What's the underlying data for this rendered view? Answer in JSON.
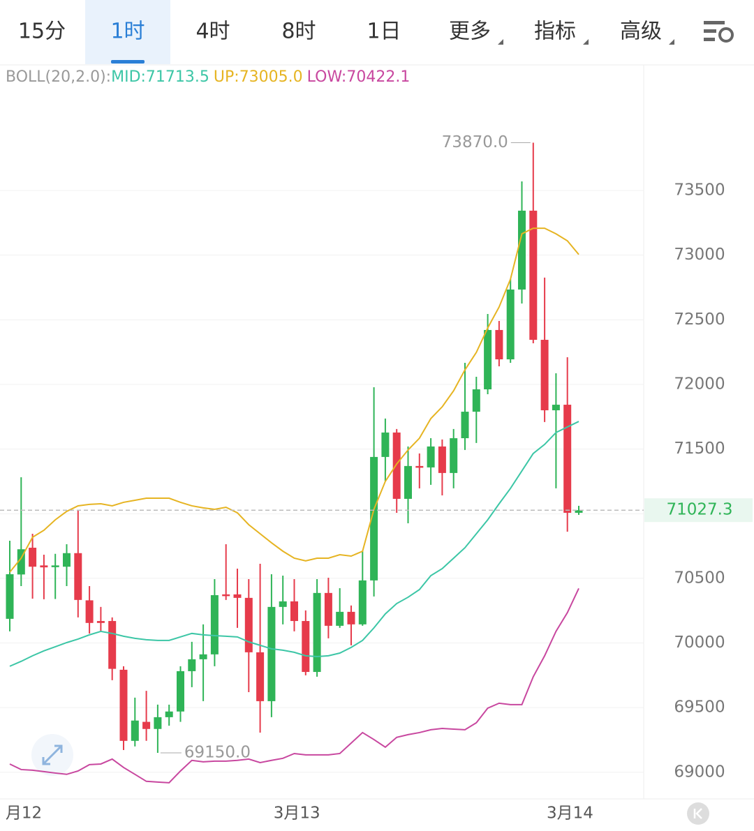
{
  "tabs": [
    "15分",
    "1时",
    "4时",
    "8时",
    "1日",
    "更多",
    "指标",
    "高级"
  ],
  "active_tab": 1,
  "indicator": {
    "label": "BOLL(20,2.0):",
    "mid": "MID:71713.5",
    "up": "UP:73005.0",
    "low": "LOW:70422.1"
  },
  "chart_data": {
    "type": "candlestick",
    "open": [
      70187,
      70530,
      70737,
      70600,
      70590,
      70590,
      70695,
      70330,
      70170,
      70170,
      69793,
      69243,
      69390,
      69335,
      69426,
      69470,
      69782,
      69874,
      69912,
      70376,
      70376,
      70349,
      69928,
      69550,
      70279,
      70322,
      70170,
      69776,
      70387,
      70133,
      70241,
      70144,
      70484,
      71439,
      71628,
      71115,
      71369,
      71358,
      71520,
      71315,
      71584,
      71789,
      71962,
      72421,
      72194,
      72734,
      73344,
      72345,
      71800,
      71843,
      71007
    ],
    "high": [
      70791,
      71282,
      70845,
      70683,
      70690,
      70764,
      71026,
      70440,
      70279,
      70198,
      69820,
      69577,
      69630,
      69523,
      69523,
      69820,
      70009,
      70144,
      70494,
      70764,
      70575,
      70494,
      70613,
      70532,
      70521,
      70494,
      70252,
      70494,
      70505,
      70424,
      70290,
      70710,
      71978,
      71736,
      71655,
      71520,
      71466,
      71584,
      71574,
      71655,
      72167,
      72059,
      72545,
      72491,
      72815,
      73570,
      73870,
      72826,
      72086,
      72210,
      71061
    ],
    "low": [
      70090,
      70440,
      70343,
      70338,
      70340,
      70440,
      70198,
      70073,
      70090,
      69712,
      69172,
      69200,
      69243,
      69150,
      69360,
      69390,
      69658,
      69550,
      69820,
      70333,
      70117,
      69620,
      69307,
      69426,
      70144,
      70090,
      69750,
      69739,
      70036,
      70117,
      69982,
      70133,
      70360,
      71250,
      71007,
      70926,
      71196,
      71223,
      71142,
      71196,
      71493,
      71547,
      71924,
      72140,
      72167,
      72626,
      72318,
      71709,
      71196,
      70861,
      70991
    ],
    "close": [
      70532,
      70725,
      70590,
      70585,
      70600,
      70695,
      70333,
      70155,
      70155,
      69800,
      69243,
      69400,
      69335,
      69426,
      69470,
      69782,
      69874,
      69912,
      70370,
      70370,
      70349,
      69928,
      69550,
      70279,
      70322,
      70170,
      69776,
      70387,
      70133,
      70241,
      70144,
      70484,
      71439,
      71628,
      71115,
      71369,
      71358,
      71520,
      71315,
      71584,
      71789,
      71962,
      72421,
      72194,
      72734,
      73344,
      72345,
      71800,
      71843,
      71007,
      71027.3
    ],
    "bands": [
      {
        "name": "UP",
        "color": "#e6b422",
        "values": [
          70548,
          70656,
          70818,
          70872,
          70953,
          71018,
          71061,
          71072,
          71077,
          71061,
          71088,
          71104,
          71120,
          71120,
          71120,
          71088,
          71061,
          71045,
          71034,
          71050,
          71007,
          70915,
          70845,
          70775,
          70710,
          70656,
          70635,
          70656,
          70656,
          70683,
          70672,
          70710,
          71034,
          71250,
          71385,
          71493,
          71584,
          71736,
          71827,
          71951,
          72113,
          72248,
          72437,
          72599,
          72815,
          73165,
          73208,
          73208,
          73165,
          73111,
          73005
        ]
      },
      {
        "name": "MID",
        "color": "#3cc6a6",
        "values": [
          69820,
          69858,
          69901,
          69939,
          69971,
          70003,
          70030,
          70063,
          70090,
          70074,
          70052,
          70036,
          70025,
          70020,
          70020,
          70047,
          70074,
          70063,
          70057,
          70052,
          70047,
          70009,
          69982,
          69955,
          69944,
          69928,
          69901,
          69895,
          69901,
          69922,
          69966,
          70020,
          70117,
          70225,
          70305,
          70354,
          70413,
          70521,
          70575,
          70656,
          70737,
          70845,
          70953,
          71077,
          71196,
          71331,
          71466,
          71536,
          71628,
          71671,
          71713.5
        ]
      },
      {
        "name": "LOW",
        "color": "#c8479f",
        "values": [
          69064,
          69021,
          69016,
          69005,
          68994,
          68984,
          69010,
          69059,
          69064,
          69102,
          69037,
          68984,
          68930,
          68924,
          68919,
          69010,
          69092,
          69081,
          69086,
          69086,
          69092,
          69102,
          69075,
          69092,
          69108,
          69145,
          69135,
          69135,
          69135,
          69145,
          69226,
          69307,
          69253,
          69194,
          69270,
          69291,
          69307,
          69329,
          69339,
          69334,
          69329,
          69383,
          69496,
          69534,
          69523,
          69523,
          69739,
          69901,
          70090,
          70235,
          70422.1
        ]
      }
    ],
    "up_color": "#2fb457",
    "down_color": "#e63b4b",
    "ylim": [
      68794,
      74477
    ],
    "yticks": [
      69000,
      69500,
      70000,
      70500,
      71000,
      71500,
      72000,
      72500,
      73000,
      73500
    ],
    "xticks": [
      {
        "value": 0,
        "label": "月12"
      },
      {
        "value": 24,
        "label": "3月13"
      },
      {
        "value": 48,
        "label": "3月14"
      }
    ],
    "last_price": 71027.3,
    "max_label": {
      "value": 73870,
      "label": "73870.0"
    },
    "min_label": {
      "value": 69150,
      "label": "69150.0"
    },
    "grid": true
  }
}
